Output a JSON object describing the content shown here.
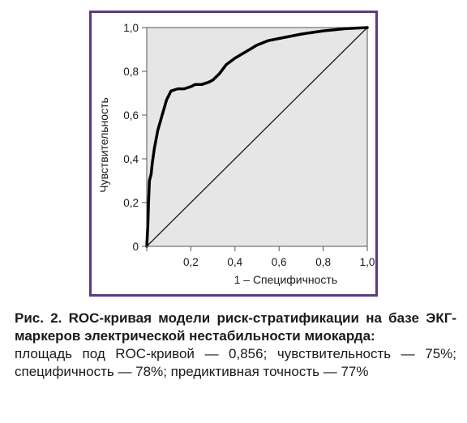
{
  "figure": {
    "caption_title": "Рис. 2. ROC-кривая модели риск-стратификации на базе ЭКГ-маркеров электрической нестабильности миокарда:",
    "caption_body": "площадь под ROC-кривой — 0,856; чувствительность — 75%; специфичность — 78%; предиктивная точность — 77%"
  },
  "colors": {
    "frame": "#5b3a82",
    "plot_background": "#e6e6e6",
    "curve": "#000000",
    "diagonal": "#1a1a1a"
  },
  "chart_data": {
    "type": "line",
    "xlabel": "1 – Специфичность",
    "ylabel": "Чувствительность",
    "xlim": [
      0,
      1
    ],
    "ylim": [
      0,
      1
    ],
    "x_ticks": [
      {
        "value": 0.2,
        "label": "0,2"
      },
      {
        "value": 0.4,
        "label": "0,4"
      },
      {
        "value": 0.6,
        "label": "0,6"
      },
      {
        "value": 0.8,
        "label": "0,8"
      },
      {
        "value": 1.0,
        "label": "1,0"
      }
    ],
    "y_ticks": [
      {
        "value": 0,
        "label": "0"
      },
      {
        "value": 0.2,
        "label": "0,2"
      },
      {
        "value": 0.4,
        "label": "0,4"
      },
      {
        "value": 0.6,
        "label": "0,6"
      },
      {
        "value": 0.8,
        "label": "0,8"
      },
      {
        "value": 1.0,
        "label": "1,0"
      }
    ],
    "grid": false,
    "series": [
      {
        "role": "roc-curve",
        "x": [
          0,
          0.005,
          0.008,
          0.012,
          0.02,
          0.025,
          0.035,
          0.05,
          0.07,
          0.09,
          0.11,
          0.14,
          0.17,
          0.2,
          0.22,
          0.25,
          0.28,
          0.3,
          0.33,
          0.36,
          0.4,
          0.45,
          0.5,
          0.55,
          0.6,
          0.7,
          0.8,
          0.9,
          1.0
        ],
        "y": [
          0,
          0.1,
          0.2,
          0.3,
          0.33,
          0.38,
          0.45,
          0.53,
          0.6,
          0.67,
          0.71,
          0.72,
          0.72,
          0.73,
          0.74,
          0.74,
          0.75,
          0.76,
          0.79,
          0.83,
          0.86,
          0.89,
          0.92,
          0.94,
          0.95,
          0.97,
          0.985,
          0.995,
          1.0
        ]
      },
      {
        "role": "diagonal",
        "x": [
          0,
          1
        ],
        "y": [
          0,
          1
        ]
      }
    ]
  }
}
